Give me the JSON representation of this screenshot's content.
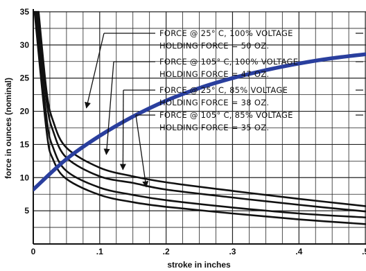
{
  "chart_data": {
    "type": "line",
    "xlabel": "stroke in inches",
    "ylabel": "force in ounces (nominal)",
    "xlim": [
      0,
      0.5
    ],
    "ylim": [
      0,
      35
    ],
    "x_ticks": [
      "0",
      ".1",
      ".2",
      ".3",
      ".4",
      ".5"
    ],
    "y_ticks": [
      "5",
      "10",
      "15",
      "20",
      "25",
      "30",
      "35"
    ],
    "grid": true,
    "annotations": [
      {
        "line1": "FORCE @  25° C, 100% VOLTAGE",
        "line2": "HOLDING FORCE = 50 OZ."
      },
      {
        "line1": "FORCE @ 105° C, 100% VOLTAGE",
        "line2": "HOLDING FORCE = 47 OZ."
      },
      {
        "line1": "FORCE @  25° C,  85% VOLTAGE",
        "line2": "HOLDING FORCE = 38 OZ."
      },
      {
        "line1": "FORCE @ 105° C,  85% VOLTAGE",
        "line2": "HOLDING FORCE = 35 OZ."
      }
    ],
    "series": [
      {
        "x": [
          0.008,
          0.02,
          0.03,
          0.05,
          0.1,
          0.15,
          0.2,
          0.3,
          0.4,
          0.5
        ],
        "y": [
          35,
          23,
          18.5,
          14.5,
          11.5,
          10.2,
          9.3,
          8.0,
          6.8,
          5.7
        ]
      },
      {
        "x": [
          0.006,
          0.02,
          0.03,
          0.05,
          0.1,
          0.15,
          0.2,
          0.3,
          0.4,
          0.5
        ],
        "y": [
          35,
          21.5,
          17,
          13,
          10.2,
          9.2,
          8.2,
          7.0,
          5.9,
          4.9
        ]
      },
      {
        "x": [
          0.004,
          0.02,
          0.03,
          0.05,
          0.1,
          0.15,
          0.2,
          0.3,
          0.4,
          0.5
        ],
        "y": [
          35,
          19,
          14.5,
          11,
          8.5,
          7.4,
          6.6,
          5.5,
          4.6,
          4.0
        ]
      },
      {
        "x": [
          0.002,
          0.02,
          0.03,
          0.05,
          0.1,
          0.15,
          0.2,
          0.3,
          0.4,
          0.5
        ],
        "y": [
          35,
          17,
          12.7,
          9.8,
          7.4,
          6.3,
          5.6,
          4.6,
          3.7,
          3.0
        ]
      },
      {
        "x": [
          0,
          0.05,
          0.1,
          0.15,
          0.2,
          0.25,
          0.3,
          0.35,
          0.4,
          0.45,
          0.5
        ],
        "y": [
          8.2,
          12.8,
          16.3,
          19.2,
          21.6,
          23.5,
          25.0,
          26.2,
          27.2,
          28.0,
          28.6
        ],
        "color": "#2a3f9e"
      }
    ]
  }
}
